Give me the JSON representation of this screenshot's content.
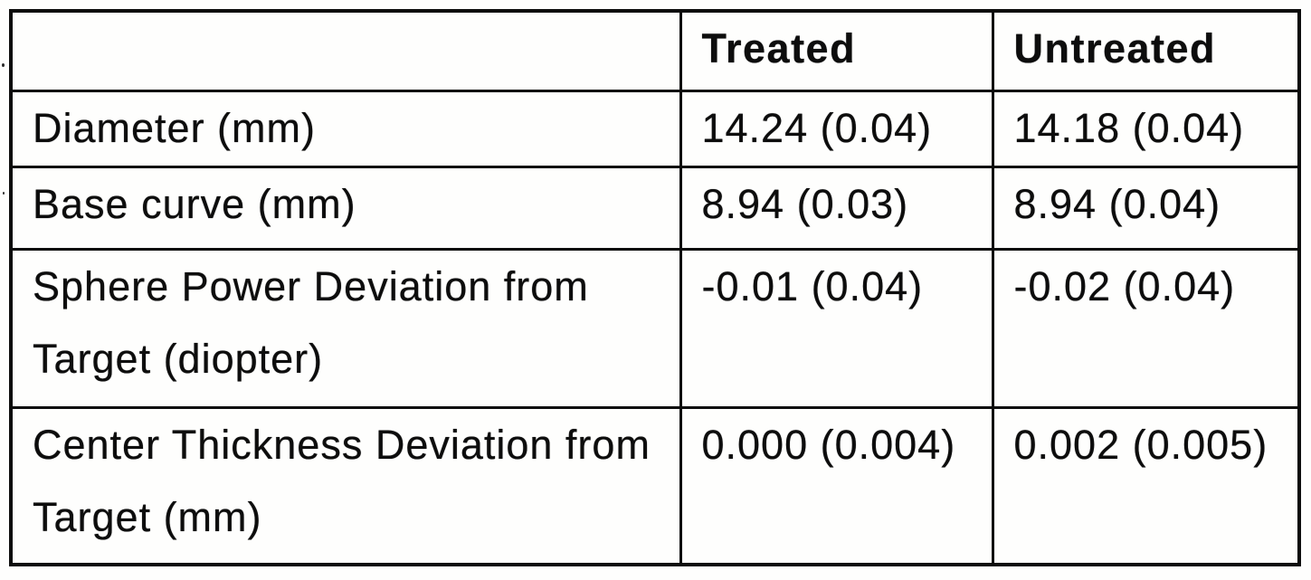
{
  "table": {
    "columns": [
      {
        "key": "parameter",
        "label": ""
      },
      {
        "key": "treated",
        "label": "Treated"
      },
      {
        "key": "untreated",
        "label": "Untreated"
      }
    ],
    "rows": [
      {
        "label": "Diameter (mm)",
        "treated": "14.24 (0.04)",
        "untreated": "14.18 (0.04)"
      },
      {
        "label": "Base curve (mm)",
        "treated": "8.94 (0.03)",
        "untreated": "8.94 (0.04)"
      },
      {
        "label": "Sphere Power Deviation from Target (diopter)",
        "treated": "-0.01 (0.04)",
        "untreated": "-0.02 (0.04)"
      },
      {
        "label": "Center Thickness Deviation from Target (mm)",
        "treated": "0.000 (0.004)",
        "untreated": "0.002 (0.005)"
      }
    ]
  },
  "colors": {
    "border": "#0c0c0c",
    "text": "#0d0d0d",
    "background": "#fefefd"
  }
}
